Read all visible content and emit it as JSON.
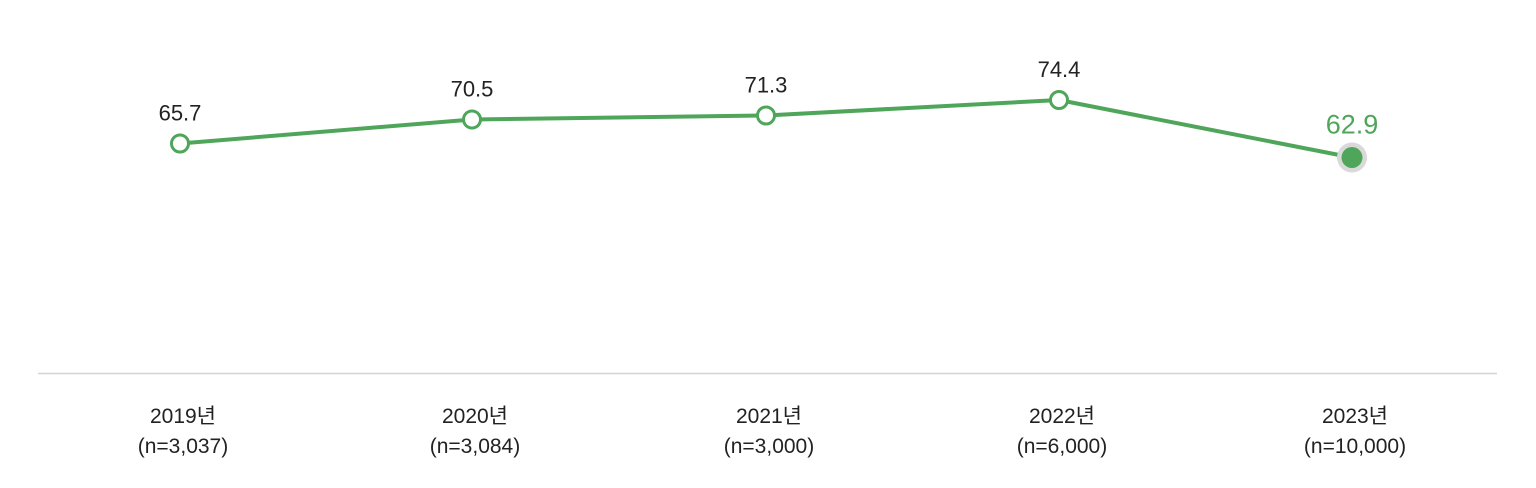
{
  "chart_data": {
    "type": "line",
    "categories": [
      "2019년",
      "2020년",
      "2021년",
      "2022년",
      "2023년"
    ],
    "sample_sizes": [
      "(n=3,037)",
      "(n=3,084)",
      "(n=3,000)",
      "(n=6,000)",
      "(n=10,000)"
    ],
    "series": [
      {
        "values": [
          65.7,
          70.5,
          71.3,
          74.4,
          62.9
        ],
        "labels": [
          "65.7",
          "70.5",
          "71.3",
          "74.4",
          "62.9"
        ],
        "color": "#4fa65a",
        "highlight_color": "#4fa65a",
        "highlight_halo_color": "#d9d9d9"
      }
    ],
    "highlight_index": 4,
    "ylim": [
      20,
      80
    ],
    "grid": false,
    "legend": "none",
    "baseline_color": "#d4d4d4"
  }
}
